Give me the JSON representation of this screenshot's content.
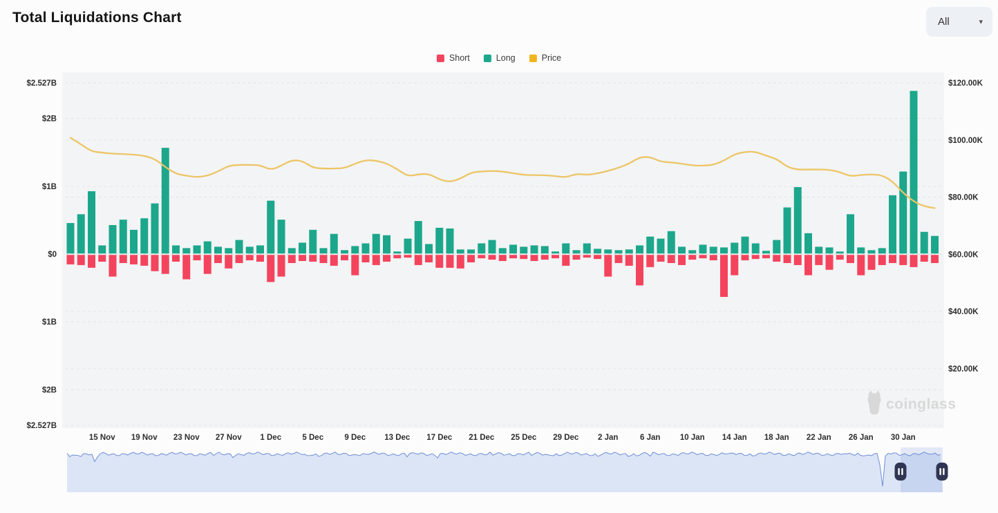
{
  "header": {
    "title": "Total Liquidations Chart",
    "range_selector": {
      "value": "All"
    }
  },
  "legend": [
    {
      "label": "Short",
      "color": "#f4445d"
    },
    {
      "label": "Long",
      "color": "#1ca78c"
    },
    {
      "label": "Price",
      "color": "#f0b51e"
    }
  ],
  "watermark": {
    "text": "coinglass"
  },
  "chart_data": {
    "type": "combo",
    "title": "Total Liquidations Chart",
    "grid": "dashed-horizontal",
    "legend_position": "top-center",
    "y_axis_left": {
      "unit": "USD liquidations (mirrored)",
      "labels": [
        "$2.527B",
        "$2B",
        "$1B",
        "$0",
        "$1B",
        "$2B",
        "$2.527B"
      ],
      "values_b": [
        2.527,
        2,
        1,
        0,
        -1,
        -2,
        -2.527
      ],
      "max_b": 2.527
    },
    "y_axis_right": {
      "unit": "Price (USD)",
      "labels": [
        "$120.00K",
        "$100.00K",
        "$80.00K",
        "$60.00K",
        "$40.00K",
        "$20.00K"
      ],
      "values_k": [
        120,
        100,
        80,
        60,
        40,
        20
      ]
    },
    "x_axis": {
      "tick_labels": [
        "15 Nov",
        "19 Nov",
        "23 Nov",
        "27 Nov",
        "1 Dec",
        "5 Dec",
        "9 Dec",
        "13 Dec",
        "17 Dec",
        "21 Dec",
        "25 Dec",
        "29 Dec",
        "2 Jan",
        "6 Jan",
        "10 Jan",
        "14 Jan",
        "18 Jan",
        "22 Jan",
        "26 Jan",
        "30 Jan"
      ],
      "tick_indices": [
        3,
        7,
        11,
        15,
        19,
        23,
        27,
        31,
        35,
        39,
        43,
        47,
        51,
        55,
        59,
        63,
        67,
        71,
        75,
        79
      ]
    },
    "dates": [
      "12 Nov",
      "13 Nov",
      "14 Nov",
      "15 Nov",
      "16 Nov",
      "17 Nov",
      "18 Nov",
      "19 Nov",
      "20 Nov",
      "21 Nov",
      "22 Nov",
      "23 Nov",
      "24 Nov",
      "25 Nov",
      "26 Nov",
      "27 Nov",
      "28 Nov",
      "29 Nov",
      "30 Nov",
      "1 Dec",
      "2 Dec",
      "3 Dec",
      "4 Dec",
      "5 Dec",
      "6 Dec",
      "7 Dec",
      "8 Dec",
      "9 Dec",
      "10 Dec",
      "11 Dec",
      "12 Dec",
      "13 Dec",
      "14 Dec",
      "15 Dec",
      "16 Dec",
      "17 Dec",
      "18 Dec",
      "19 Dec",
      "20 Dec",
      "21 Dec",
      "22 Dec",
      "23 Dec",
      "24 Dec",
      "25 Dec",
      "26 Dec",
      "27 Dec",
      "28 Dec",
      "29 Dec",
      "30 Dec",
      "31 Dec",
      "1 Jan",
      "2 Jan",
      "3 Jan",
      "4 Jan",
      "5 Jan",
      "6 Jan",
      "7 Jan",
      "8 Jan",
      "9 Jan",
      "10 Jan",
      "11 Jan",
      "12 Jan",
      "13 Jan",
      "14 Jan",
      "15 Jan",
      "16 Jan",
      "17 Jan",
      "18 Jan",
      "19 Jan",
      "20 Jan",
      "21 Jan",
      "22 Jan",
      "23 Jan",
      "24 Jan",
      "25 Jan",
      "26 Jan",
      "27 Jan",
      "28 Jan",
      "29 Jan",
      "30 Jan",
      "31 Jan",
      "1 Feb",
      "2 Feb"
    ],
    "series": [
      {
        "name": "Long",
        "type": "bar",
        "direction": "up",
        "color": "#1ca78c",
        "unit": "B USD",
        "values": [
          0.45,
          0.58,
          0.92,
          0.12,
          0.42,
          0.5,
          0.35,
          0.52,
          0.74,
          1.56,
          0.12,
          0.08,
          0.12,
          0.18,
          0.1,
          0.08,
          0.2,
          0.1,
          0.12,
          0.78,
          0.5,
          0.08,
          0.16,
          0.35,
          0.08,
          0.29,
          0.05,
          0.11,
          0.15,
          0.29,
          0.27,
          0.03,
          0.22,
          0.48,
          0.14,
          0.38,
          0.37,
          0.06,
          0.06,
          0.15,
          0.2,
          0.08,
          0.13,
          0.1,
          0.12,
          0.11,
          0.03,
          0.15,
          0.05,
          0.15,
          0.07,
          0.06,
          0.05,
          0.06,
          0.12,
          0.25,
          0.22,
          0.33,
          0.1,
          0.05,
          0.13,
          0.1,
          0.09,
          0.16,
          0.25,
          0.15,
          0.04,
          0.2,
          0.68,
          0.98,
          0.3,
          0.1,
          0.09,
          0.03,
          0.58,
          0.09,
          0.05,
          0.08,
          0.86,
          1.21,
          2.4,
          0.32,
          0.26
        ]
      },
      {
        "name": "Short",
        "type": "bar",
        "direction": "down",
        "color": "#f4445d",
        "unit": "B USD",
        "values": [
          0.14,
          0.15,
          0.19,
          0.1,
          0.32,
          0.12,
          0.14,
          0.16,
          0.24,
          0.28,
          0.1,
          0.36,
          0.08,
          0.28,
          0.12,
          0.2,
          0.12,
          0.08,
          0.1,
          0.4,
          0.32,
          0.12,
          0.09,
          0.1,
          0.12,
          0.16,
          0.08,
          0.3,
          0.11,
          0.15,
          0.1,
          0.05,
          0.04,
          0.15,
          0.11,
          0.19,
          0.19,
          0.2,
          0.11,
          0.05,
          0.07,
          0.09,
          0.05,
          0.06,
          0.09,
          0.07,
          0.05,
          0.16,
          0.07,
          0.04,
          0.06,
          0.32,
          0.12,
          0.16,
          0.45,
          0.18,
          0.1,
          0.12,
          0.15,
          0.07,
          0.05,
          0.08,
          0.62,
          0.3,
          0.08,
          0.06,
          0.05,
          0.1,
          0.12,
          0.15,
          0.3,
          0.15,
          0.22,
          0.07,
          0.12,
          0.3,
          0.22,
          0.15,
          0.12,
          0.15,
          0.18,
          0.1,
          0.12
        ]
      },
      {
        "name": "Price",
        "type": "line",
        "color": "#ecc566",
        "unit": "K USD",
        "values": [
          100.8,
          98.5,
          96,
          95.6,
          95.2,
          95.1,
          94.9,
          94.5,
          93.4,
          90.5,
          88.2,
          87.5,
          87,
          87.5,
          89,
          91,
          91.3,
          91.3,
          91.2,
          89.5,
          91,
          93,
          92.7,
          90.3,
          90,
          90,
          90.2,
          91.7,
          93,
          92.8,
          91.8,
          89.8,
          87.3,
          88,
          88.2,
          86.2,
          85.3,
          86.5,
          88.6,
          89,
          89.2,
          89,
          88.4,
          87.8,
          87.7,
          87.7,
          87.4,
          86.9,
          88.2,
          87.8,
          88.3,
          89.2,
          90.3,
          91.7,
          94,
          94.1,
          92.4,
          92.2,
          91.7,
          91.1,
          91,
          91.3,
          92.8,
          95,
          95.9,
          95.9,
          94.5,
          93.4,
          90.6,
          89.6,
          89.7,
          89.7,
          89.6,
          88.8,
          87.3,
          87.8,
          88,
          87.7,
          85.5,
          81.5,
          78.5,
          76.8,
          76.2
        ]
      }
    ],
    "navigator": {
      "selected_range": {
        "from": "29 Jan",
        "to": "2 Feb"
      },
      "spikes": [
        {
          "x_frac": 0.032,
          "depth_frac": 0.25
        },
        {
          "x_frac": 0.931,
          "depth_frac": 0.85
        }
      ],
      "colors": {
        "area": "#dce5f6",
        "line": "#6d8cd5",
        "selection": "rgba(110,142,214,0.18)",
        "handle": "#2f3552"
      }
    },
    "colors": {
      "plot_background": "#f3f4f5",
      "gridline": "#e2e3e5",
      "axis_text": "#2d2d2d",
      "watermark": "#d8d8d8"
    }
  }
}
